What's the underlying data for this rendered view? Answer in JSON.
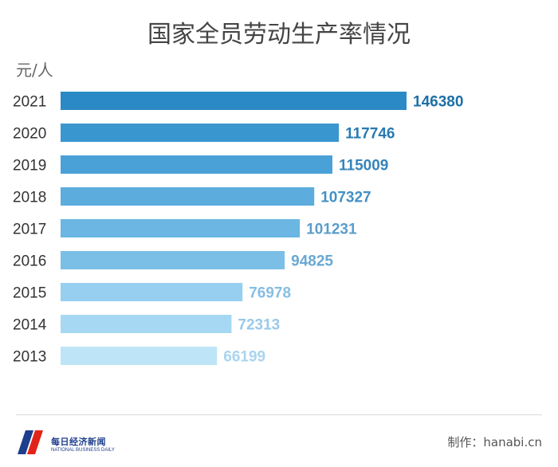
{
  "chart_data": {
    "type": "bar",
    "orientation": "horizontal",
    "title": "国家全员劳动生产率情况",
    "unit_label": "元/人",
    "categories": [
      "2021",
      "2020",
      "2019",
      "2018",
      "2017",
      "2016",
      "2015",
      "2014",
      "2013"
    ],
    "values": [
      146380,
      117746,
      115009,
      107327,
      101231,
      94825,
      76978,
      72313,
      66199
    ],
    "value_labels": [
      "146380",
      "117746",
      "115009",
      "107327",
      "101231",
      "94825",
      "76978",
      "72313",
      "66199"
    ],
    "bar_colors": [
      "#2b8ac5",
      "#3a96cf",
      "#4aa1d8",
      "#5cacde",
      "#6bb6e2",
      "#7bbfe6",
      "#96cff0",
      "#a6d8f3",
      "#bde5f7"
    ],
    "label_colors": [
      "#1e6fa5",
      "#2a79b0",
      "#3684bb",
      "#4490c4",
      "#5a9dcb",
      "#6aa8d3",
      "#86bee3",
      "#98c9ea",
      "#a9d4ef"
    ],
    "xlim": [
      0,
      146380
    ],
    "grid": false,
    "legend": "none"
  },
  "footer": {
    "logo_cn": "每日经济新闻",
    "logo_en": "NATIONAL BUSINESS DAILY",
    "credit": "制作：hanabi.cn"
  },
  "colors": {
    "title": "#444444",
    "axis_text": "#333333",
    "logo_red": "#e2231a",
    "logo_blue": "#1d3e8c"
  }
}
